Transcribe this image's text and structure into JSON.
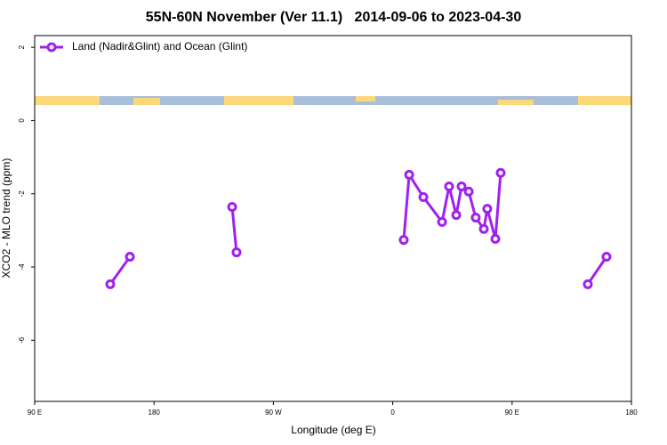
{
  "chart_data": {
    "type": "line",
    "title": "55N-60N November (Ver 11.1)   2014-09-06 to 2023-04-30",
    "x_label": "Longitude (deg E)",
    "y_label": "XCO2 - MLO trend (ppm)",
    "xlim": [
      90,
      540
    ],
    "ylim": [
      -7.67,
      2.32
    ],
    "xticks": [
      {
        "value": 90,
        "label": "90 E"
      },
      180,
      {
        "value": 270,
        "label": "90 W"
      },
      {
        "value": 360,
        "label": "0"
      },
      {
        "value": 450,
        "label": "90 E"
      },
      {
        "value": 540,
        "label": "180"
      }
    ],
    "yticks": [
      2,
      0,
      -2,
      -4,
      -6
    ],
    "legend": "top-left",
    "series": [
      {
        "name": "Land (Nadir&Glint) and Ocean (Glint)",
        "color": "#a020f0",
        "x": [
          147,
          161.8,
          null,
          238.9,
          242.2,
          null,
          368.3,
          372.4,
          383.1,
          397.2,
          402.5,
          407.9,
          411.9,
          417.3,
          422.6,
          428.7,
          431.3,
          437.4,
          441.4,
          null,
          507.1,
          521.2
        ],
        "values": [
          -4.47,
          -3.72,
          null,
          -2.36,
          -3.6,
          null,
          -3.26,
          -1.48,
          -2.09,
          -2.77,
          -1.8,
          -2.58,
          -1.8,
          -1.94,
          -2.65,
          -2.96,
          -2.41,
          -3.23,
          -1.43,
          null,
          -4.47,
          -3.72
        ]
      }
    ]
  }
}
